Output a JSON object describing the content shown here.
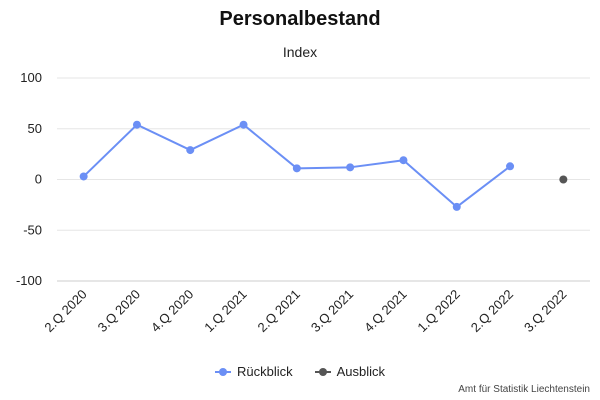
{
  "chart_data": {
    "type": "line",
    "title": "Personalbestand",
    "subtitle": "Index",
    "categories": [
      "2.Q 2020",
      "3.Q 2020",
      "4.Q 2020",
      "1.Q 2021",
      "2.Q 2021",
      "3.Q 2021",
      "4.Q 2021",
      "1.Q 2022",
      "2.Q 2022",
      "3.Q 2022"
    ],
    "series": [
      {
        "name": "Rückblick",
        "color": "#6b8ff5",
        "values": [
          3,
          54,
          29,
          54,
          11,
          12,
          19,
          -27,
          13,
          null
        ]
      },
      {
        "name": "Ausblick",
        "color": "#555555",
        "values": [
          null,
          null,
          null,
          null,
          null,
          null,
          null,
          null,
          null,
          0
        ]
      }
    ],
    "yticks": [
      100,
      50,
      0,
      -50,
      -100
    ],
    "ylim": [
      -100,
      100
    ],
    "grid": true,
    "legend_position": "bottom-center"
  },
  "credits": "Amt für Statistik Liechtenstein"
}
